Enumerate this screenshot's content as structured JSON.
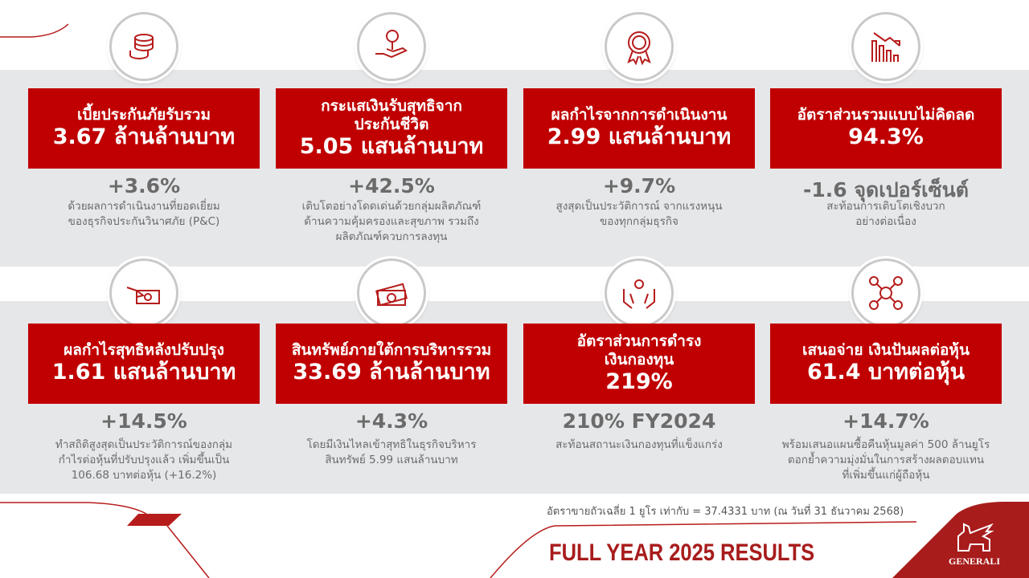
{
  "colors": {
    "accent": "#c00000",
    "band": "#e6e7e9",
    "text": "#6b6b6b",
    "brand": "#a81c1c"
  },
  "cards": [
    {
      "icon": "coins-icon",
      "title": "เบี้ยประกันภัยรับรวม",
      "value": "3.67 ล้านล้านบาท",
      "change": "+3.6%",
      "desc": "ด้วยผลการดำเนินงานที่ยอดเยี่ยม\nของธุรกิจประกันวินาศภัย (P&C)"
    },
    {
      "icon": "hand-plant-euro-icon",
      "title": "กระแสเงินรับสุทธิจาก\nประกันชีวิต",
      "value": "5.05 แสนล้านบาท",
      "change": "+42.5%",
      "desc": "เติบโตอย่างโดดเด่นด้วยกลุ่มผลิตภัณฑ์\nด้านความคุ้มครองและสุขภาพ รวมถึง\nผลิตภัณฑ์ควบการลงทุน"
    },
    {
      "icon": "euro-award-icon",
      "title": "ผลกำไรจากการดำเนินงาน",
      "value": "2.99 แสนล้านบาท",
      "change": "+9.7%",
      "desc": "สูงสุดเป็นประวัติการณ์ จากแรงหนุน\nของทุกกลุ่มธุรกิจ"
    },
    {
      "icon": "bar-chart-down-icon",
      "title": "อัตราส่วนรวมแบบไม่คิดลด",
      "value": "94.3%",
      "change": "-1.6 จุดเปอร์เซ็นต์",
      "desc": "สะท้อนการเติบโตเชิงบวก\nอย่างต่อเนื่อง"
    },
    {
      "icon": "hand-cash-icon",
      "title": "ผลกำไรสุทธิหลังปรับปรุง",
      "value": "1.61 แสนล้านบาท",
      "change": "+14.5%",
      "desc": "ทำสถิติสูงสุดเป็นประวัติการณ์ของกลุ่ม\nกำไรต่อหุ้นที่ปรับปรุงแล้ว เพิ่มขึ้นเป็น\n106.68 บาทต่อหุ้น (+16.2%)"
    },
    {
      "icon": "banknotes-icon",
      "title": "สินทรัพย์ภายใต้การบริหารรวม",
      "value": "33.69 ล้านล้านบาท",
      "change": "+4.3%",
      "desc": "โดยมีเงินไหลเข้าสุทธิในธุรกิจบริหาร\nสินทรัพย์ 5.99 แสนล้านบาท"
    },
    {
      "icon": "hands-euro-icon",
      "title": "อัตราส่วนการดำรง\nเงินกองทุน",
      "value": "219%",
      "change": "210% FY2024",
      "desc": "สะท้อนสถานะเงินกองทุนที่แข็งแกร่ง"
    },
    {
      "icon": "network-euro-icon",
      "title": "เสนอจ่าย เงินปันผลต่อหุ้น",
      "value": "61.4 บาทต่อหุ้น",
      "change": "+14.7%",
      "desc": "พร้อมเสนอแผนซื้อคืนหุ้นมูลค่า 500 ล้านยูโร\nตอกย้ำความมุ่งมั่นในการสร้างผลตอบแทน\nที่เพิ่มขึ้นแก่ผู้ถือหุ้น"
    }
  ],
  "footer": {
    "note": "อัตราขายถัวเฉลี่ย 1 ยูโร เท่ากับ  = 37.4331 บาท (ณ วันที่ 31 ธันวาคม 2568)",
    "title": "FULL YEAR 2025 RESULTS",
    "logo": "GENERALI"
  }
}
